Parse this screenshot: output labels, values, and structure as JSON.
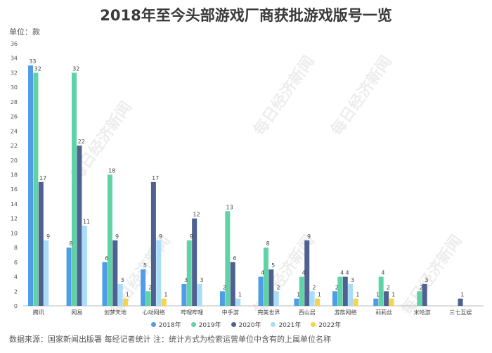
{
  "header": {
    "title": "2018年至今头部游戏厂商获批游戏版号一览",
    "unit": "单位：款"
  },
  "footer": {
    "source": "数据来源：国家新闻出版署 每经记者统计 注：统计方式为检索运营单位中含有的上属单位名称"
  },
  "watermark": {
    "text": "每日经济新闻"
  },
  "chart_data": {
    "type": "bar",
    "title": "2018年至今头部游戏厂商获批游戏版号一览",
    "xlabel": "",
    "ylabel": "单位：款",
    "ylim": [
      0,
      36
    ],
    "yticks": [
      0,
      2,
      4,
      6,
      8,
      10,
      12,
      14,
      16,
      18,
      20,
      22,
      24,
      26,
      28,
      30,
      32,
      34,
      36
    ],
    "grid": false,
    "legend": "bottom",
    "categories": [
      "腾讯",
      "网易",
      "创梦天地",
      "心动网络",
      "哔哩哔哩",
      "中手游",
      "完美世界",
      "西山居",
      "游族网络",
      "莉莉丝",
      "米哈游",
      "三七互娱"
    ],
    "series": [
      {
        "name": "2018年",
        "color": "#4e9de6",
        "values": [
          33,
          8,
          6,
          5,
          3,
          2,
          4,
          1,
          2,
          1,
          null,
          null
        ]
      },
      {
        "name": "2019年",
        "color": "#5fd3a5",
        "values": [
          32,
          32,
          18,
          2,
          9,
          13,
          8,
          4,
          4,
          4,
          2,
          null
        ]
      },
      {
        "name": "2020年",
        "color": "#4e6191",
        "values": [
          17,
          22,
          9,
          17,
          12,
          6,
          5,
          9,
          4,
          2,
          3,
          1
        ]
      },
      {
        "name": "2021年",
        "color": "#a8dcf7",
        "values": [
          9,
          11,
          3,
          9,
          3,
          1,
          2,
          2,
          3,
          null,
          null,
          null
        ]
      },
      {
        "name": "2022年",
        "color": "#f5d547",
        "values": [
          null,
          null,
          1,
          1,
          null,
          null,
          null,
          1,
          1,
          1,
          null,
          null
        ]
      }
    ]
  }
}
